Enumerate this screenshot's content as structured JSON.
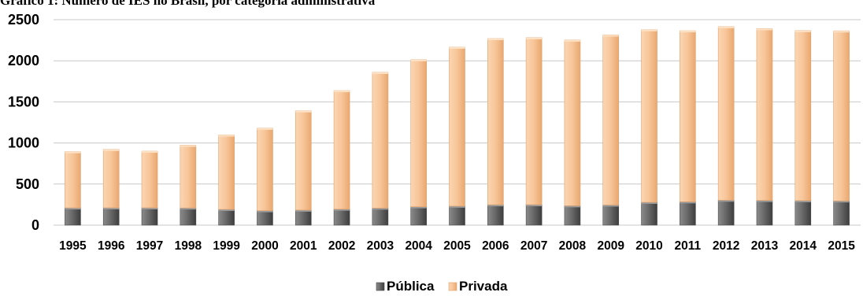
{
  "chart_data": {
    "type": "bar",
    "stacked": true,
    "title": "Gráfico 1: Número de IES no Brasil, por categoria administrativa",
    "xlabel": "",
    "ylabel": "",
    "ylim": [
      0,
      2500
    ],
    "yticks": [
      0,
      500,
      1000,
      1500,
      2000,
      2500
    ],
    "grid": true,
    "legend_position": "bottom",
    "categories": [
      "1995",
      "1996",
      "1997",
      "1998",
      "1999",
      "2000",
      "2001",
      "2002",
      "2003",
      "2004",
      "2005",
      "2006",
      "2007",
      "2008",
      "2009",
      "2010",
      "2011",
      "2012",
      "2013",
      "2014",
      "2015"
    ],
    "series": [
      {
        "name": "Pública",
        "color": "#6e6e6e",
        "values": [
          210,
          211,
          211,
          209,
          192,
          176,
          183,
          195,
          207,
          224,
          231,
          248,
          249,
          236,
          245,
          278,
          284,
          304,
          301,
          298,
          295
        ]
      },
      {
        "name": "Privada",
        "color": "#f7c79c",
        "values": [
          684,
          711,
          689,
          764,
          905,
          1004,
          1208,
          1442,
          1652,
          1789,
          1934,
          2022,
          2032,
          2016,
          2069,
          2100,
          2081,
          2112,
          2090,
          2070,
          2069
        ]
      }
    ]
  }
}
